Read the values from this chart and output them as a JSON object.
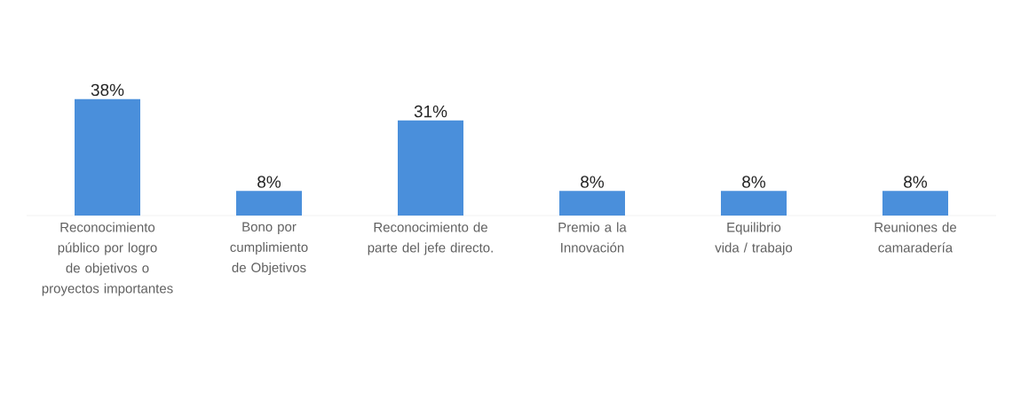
{
  "chart_data": {
    "type": "bar",
    "categories": [
      "Reconocimiento público por logro de objetivos o proyectos importantes",
      "Bono por cumplimiento de Objetivos",
      "Reconocimiento de parte del jefe directo.",
      "Premio a la Innovación",
      "Equilibrio vida / trabajo",
      "Reuniones de camaradería"
    ],
    "values": [
      38,
      8,
      31,
      8,
      8,
      8
    ],
    "value_labels": [
      "38%",
      "8%",
      "31%",
      "8%",
      "8%",
      "8%"
    ],
    "color": "#4a8fdb"
  }
}
